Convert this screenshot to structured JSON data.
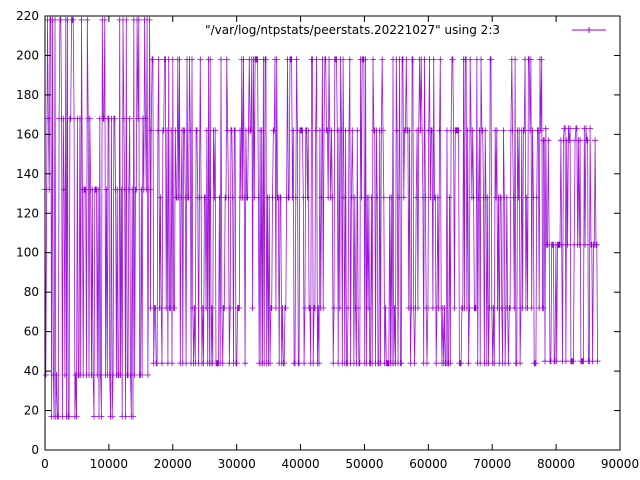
{
  "chart_data": {
    "type": "line",
    "xlim": [
      0,
      90000
    ],
    "ylim": [
      0,
      220
    ],
    "x_ticks": [
      0,
      10000,
      20000,
      30000,
      40000,
      50000,
      60000,
      70000,
      80000,
      90000
    ],
    "y_ticks": [
      0,
      20,
      40,
      60,
      80,
      100,
      120,
      140,
      160,
      180,
      200,
      220
    ],
    "grid": false,
    "legend_position": "top-right",
    "series": [
      {
        "name": "\"/var/log/ntpstats/peerstats.20221027\" using 2:3",
        "color": "#9400d3",
        "marker": "plus",
        "segments": [
          {
            "x_range": [
              0,
              16500
            ],
            "levels": [
              17,
              38,
              132,
              168,
              218
            ]
          },
          {
            "x_range": [
              16500,
              78000
            ],
            "levels": [
              44,
              72,
              128,
              162,
              198
            ]
          },
          {
            "x_range": [
              78000,
              86500
            ],
            "levels": [
              45,
              104,
              157,
              163
            ]
          }
        ]
      }
    ]
  }
}
